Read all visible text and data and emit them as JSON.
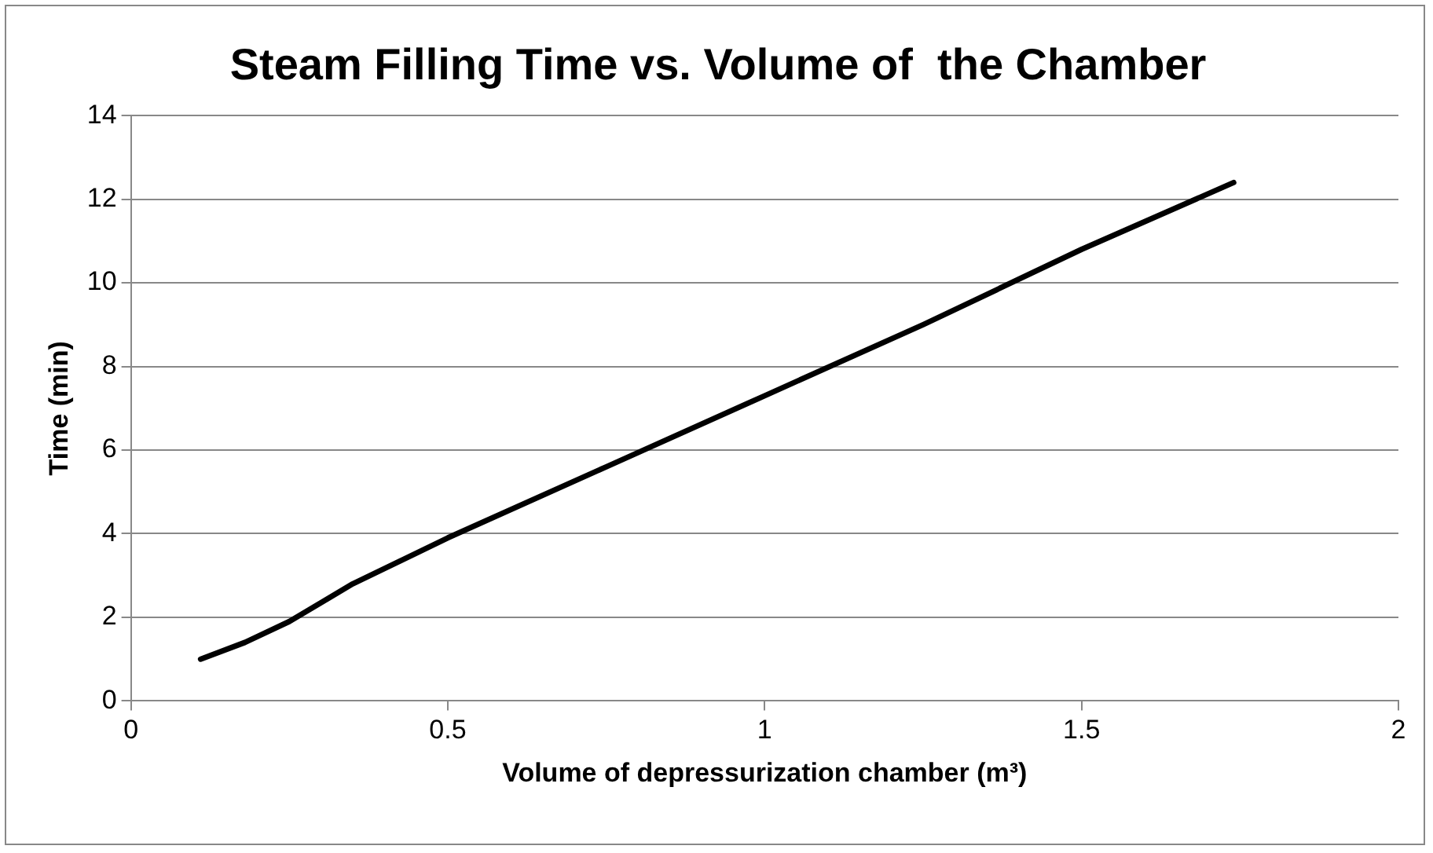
{
  "chart_data": {
    "type": "line",
    "title": "Steam Filling Time vs. Volume of  the Chamber",
    "xlabel": "Volume of depressurization chamber (m³)",
    "ylabel": "Time (min)",
    "x": [
      0.11,
      0.18,
      0.25,
      0.35,
      0.5,
      0.75,
      1.0,
      1.25,
      1.5,
      1.74
    ],
    "series": [
      {
        "color": "#000000",
        "values": [
          1.0,
          1.4,
          1.9,
          2.8,
          3.9,
          5.6,
          7.3,
          9.0,
          10.8,
          12.4
        ]
      }
    ],
    "xlim": [
      0,
      2
    ],
    "xticks": [
      0,
      0.5,
      1,
      1.5,
      2
    ],
    "ylim": [
      0,
      14
    ],
    "yticks": [
      0,
      2,
      4,
      6,
      8,
      10,
      12,
      14
    ],
    "grid": "y",
    "legend": false,
    "marker": "none",
    "line_style": "solid"
  }
}
